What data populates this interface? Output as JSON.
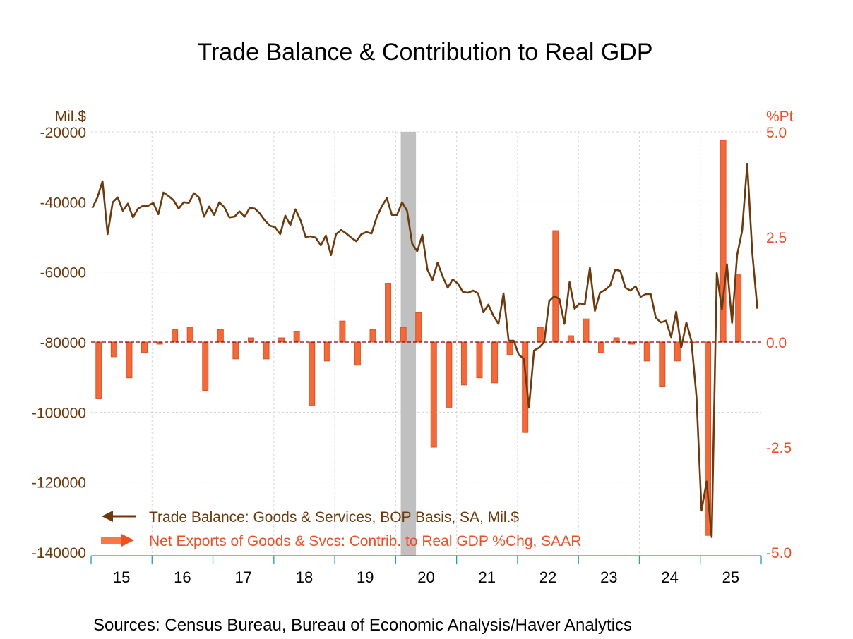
{
  "chart_data": {
    "type": "bar+line",
    "title": "Trade Balance & Contribution to Real GDP",
    "left_axis": {
      "label": "Mil.$",
      "range": [
        -140000,
        -20000
      ],
      "ticks": [
        -20000,
        -40000,
        -60000,
        -80000,
        -100000,
        -120000,
        -140000
      ],
      "tick_labels": [
        "-20000",
        "-40000",
        "-60000",
        "-80000",
        "-100000",
        "-120000",
        "-140000"
      ]
    },
    "right_axis": {
      "label": "%Pt",
      "range": [
        -5.0,
        5.0
      ],
      "ticks": [
        5.0,
        2.5,
        0.0,
        -2.5,
        -5.0
      ],
      "tick_labels": [
        "5.0",
        "2.5",
        "0.0",
        "-2.5",
        "-5.0"
      ]
    },
    "x_axis": {
      "categories": [
        "15",
        "16",
        "17",
        "18",
        "19",
        "20",
        "21",
        "22",
        "23",
        "24",
        "25"
      ]
    },
    "grid": true,
    "recession_shading": {
      "start": "2020-02",
      "end": "2020-04"
    },
    "legend_placement": "bottom-left",
    "colors": {
      "line": "#6b3a0e",
      "bars": "#f26a3a",
      "bar_outline": "#d9542a",
      "right_axis": "#e8502a",
      "x_axis": "#2a9aa8",
      "recession": "#c0c0c0",
      "zero_line": "#8b0000"
    },
    "series": [
      {
        "name": "Trade Balance: Goods & Services, BOP Basis, SA, Mil.$",
        "axis": "left",
        "kind": "line",
        "frequency": "monthly",
        "start": "2015-01",
        "values": [
          -41700,
          -38700,
          -34100,
          -49200,
          -40100,
          -38700,
          -42500,
          -40500,
          -44400,
          -41900,
          -41100,
          -41100,
          -40300,
          -43500,
          -37300,
          -38300,
          -39500,
          -41900,
          -40100,
          -40300,
          -37500,
          -38700,
          -44200,
          -41300,
          -43700,
          -40100,
          -41500,
          -44400,
          -44200,
          -42700,
          -44200,
          -41700,
          -41900,
          -43300,
          -45300,
          -46800,
          -47200,
          -49200,
          -43900,
          -46600,
          -42100,
          -45200,
          -50000,
          -49800,
          -50200,
          -52400,
          -49600,
          -55200,
          -49200,
          -48000,
          -49000,
          -50200,
          -51200,
          -49200,
          -48600,
          -49000,
          -44400,
          -41300,
          -38900,
          -43700,
          -43700,
          -40100,
          -42500,
          -51900,
          -54100,
          -49400,
          -59300,
          -62300,
          -57300,
          -61300,
          -64500,
          -62100,
          -63300,
          -65700,
          -65900,
          -65300,
          -66100,
          -71500,
          -69300,
          -72500,
          -74800,
          -66100,
          -79600,
          -79600,
          -83600,
          -84800,
          -98700,
          -82400,
          -81600,
          -80000,
          -68300,
          -66900,
          -67700,
          -74800,
          -62900,
          -70500,
          -68900,
          -69300,
          -58800,
          -71100,
          -65900,
          -65100,
          -63900,
          -59300,
          -59700,
          -64500,
          -65300,
          -64100,
          -67100,
          -66300,
          -66300,
          -73100,
          -74400,
          -73900,
          -78600,
          -71300,
          -81600,
          -74400,
          -79600,
          -95500,
          -128100,
          -119800,
          -135700,
          -60300,
          -70700,
          -57800,
          -74500,
          -55200,
          -48200,
          -29100,
          -54600,
          -70500
        ]
      },
      {
        "name": "Net Exports of Goods & Svcs: Contrib. to Real GDP %Chg, SAAR",
        "axis": "right",
        "kind": "bar",
        "frequency": "quarterly",
        "start": "2015-Q1",
        "values": [
          -1.35,
          -0.35,
          -0.85,
          -0.25,
          -0.05,
          0.3,
          0.35,
          -1.15,
          0.3,
          -0.4,
          0.1,
          -0.4,
          0.1,
          0.25,
          -1.5,
          -0.45,
          0.5,
          -0.55,
          0.3,
          1.4,
          0.35,
          0.7,
          -2.5,
          -1.55,
          -1.02,
          -0.85,
          -0.97,
          -0.3,
          -2.15,
          0.35,
          2.65,
          0.15,
          0.55,
          -0.25,
          0.1,
          -0.05,
          -0.45,
          -1.05,
          -0.45,
          0.0,
          -4.6,
          4.8,
          1.6
        ]
      }
    ]
  },
  "legend": {
    "line_label": "Trade Balance: Goods & Services, BOP Basis, SA, Mil.$",
    "bar_label": "Net Exports of Goods & Svcs: Contrib. to Real GDP %Chg, SAAR"
  },
  "sources": "Sources:  Census Bureau, Bureau of Economic Analysis/Haver Analytics"
}
